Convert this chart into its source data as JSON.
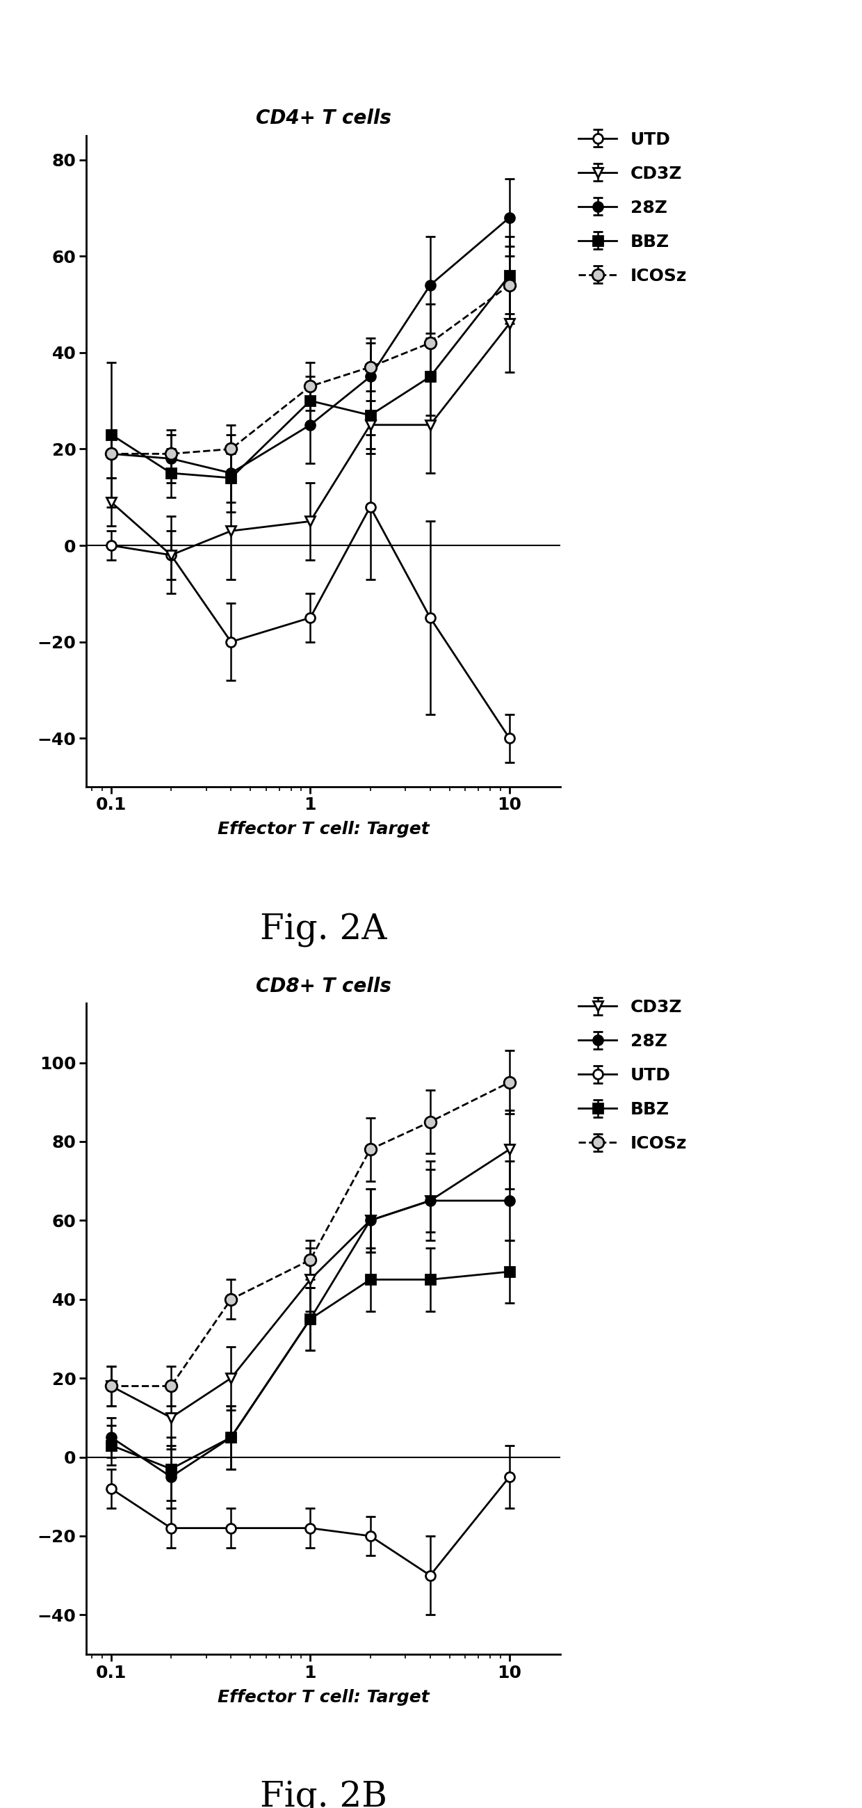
{
  "fig2a": {
    "title": "CD4+ T cells",
    "xlabel": "Effector T cell: Target",
    "ylim": [
      -50,
      85
    ],
    "yticks": [
      -40,
      -20,
      0,
      20,
      40,
      60,
      80
    ],
    "series": {
      "UTD": {
        "x": [
          0.1,
          0.2,
          0.4,
          1.0,
          2.0,
          4.0,
          10.0
        ],
        "y": [
          0,
          -2,
          -20,
          -15,
          8,
          -15,
          -40
        ],
        "yerr": [
          3,
          5,
          8,
          5,
          15,
          20,
          5
        ],
        "marker": "o",
        "mfc": "white",
        "linestyle": "-"
      },
      "CD3Z": {
        "x": [
          0.1,
          0.2,
          0.4,
          1.0,
          2.0,
          4.0,
          10.0
        ],
        "y": [
          9,
          -2,
          3,
          5,
          25,
          25,
          46
        ],
        "yerr": [
          5,
          8,
          10,
          8,
          5,
          10,
          10
        ],
        "marker": "v",
        "mfc": "white",
        "linestyle": "-"
      },
      "28Z": {
        "x": [
          0.1,
          0.2,
          0.4,
          1.0,
          2.0,
          4.0,
          10.0
        ],
        "y": [
          19,
          18,
          15,
          25,
          35,
          54,
          68
        ],
        "yerr": [
          5,
          5,
          8,
          8,
          8,
          10,
          8
        ],
        "marker": "o",
        "mfc": "black",
        "linestyle": "-"
      },
      "BBZ": {
        "x": [
          0.1,
          0.2,
          0.4,
          1.0,
          2.0,
          4.0,
          10.0
        ],
        "y": [
          23,
          15,
          14,
          30,
          27,
          35,
          56
        ],
        "yerr": [
          15,
          5,
          5,
          5,
          8,
          8,
          8
        ],
        "marker": "s",
        "mfc": "black",
        "linestyle": "-"
      },
      "ICOSz": {
        "x": [
          0.1,
          0.2,
          0.4,
          1.0,
          2.0,
          4.0,
          10.0
        ],
        "y": [
          19,
          19,
          20,
          33,
          37,
          42,
          54
        ],
        "yerr": [
          5,
          5,
          5,
          5,
          5,
          8,
          8
        ],
        "marker": "o",
        "mfc": "gray",
        "linestyle": "--"
      }
    },
    "legend_order": [
      "UTD",
      "CD3Z",
      "28Z",
      "BBZ",
      "ICOSz"
    ],
    "fig_label": "Fig. 2A"
  },
  "fig2b": {
    "title": "CD8+ T cells",
    "xlabel": "Effector T cell: Target",
    "ylim": [
      -50,
      115
    ],
    "yticks": [
      -40,
      -20,
      0,
      20,
      40,
      60,
      80,
      100
    ],
    "series": {
      "CD3Z": {
        "x": [
          0.1,
          0.2,
          0.4,
          1.0,
          2.0,
          4.0,
          10.0
        ],
        "y": [
          18,
          10,
          20,
          45,
          60,
          65,
          78
        ],
        "yerr": [
          5,
          8,
          8,
          8,
          8,
          10,
          10
        ],
        "marker": "v",
        "mfc": "white",
        "linestyle": "-"
      },
      "28Z": {
        "x": [
          0.1,
          0.2,
          0.4,
          1.0,
          2.0,
          4.0,
          10.0
        ],
        "y": [
          5,
          -5,
          5,
          35,
          60,
          65,
          65
        ],
        "yerr": [
          5,
          8,
          8,
          8,
          8,
          8,
          10
        ],
        "marker": "o",
        "mfc": "black",
        "linestyle": "-"
      },
      "UTD": {
        "x": [
          0.1,
          0.2,
          0.4,
          1.0,
          2.0,
          4.0,
          10.0
        ],
        "y": [
          -8,
          -18,
          -18,
          -18,
          -20,
          -30,
          -5
        ],
        "yerr": [
          5,
          5,
          5,
          5,
          5,
          10,
          8
        ],
        "marker": "o",
        "mfc": "white",
        "linestyle": "-"
      },
      "BBZ": {
        "x": [
          0.1,
          0.2,
          0.4,
          1.0,
          2.0,
          4.0,
          10.0
        ],
        "y": [
          3,
          -3,
          5,
          35,
          45,
          45,
          47
        ],
        "yerr": [
          5,
          8,
          8,
          8,
          8,
          8,
          8
        ],
        "marker": "s",
        "mfc": "black",
        "linestyle": "-"
      },
      "ICOSz": {
        "x": [
          0.1,
          0.2,
          0.4,
          1.0,
          2.0,
          4.0,
          10.0
        ],
        "y": [
          18,
          18,
          40,
          50,
          78,
          85,
          95
        ],
        "yerr": [
          5,
          5,
          5,
          5,
          8,
          8,
          8
        ],
        "marker": "o",
        "mfc": "gray",
        "linestyle": "--"
      }
    },
    "legend_order": [
      "CD3Z",
      "28Z",
      "UTD",
      "BBZ",
      "ICOSz"
    ],
    "fig_label": "Fig. 2B"
  },
  "xlim_log": [
    0.075,
    18
  ],
  "xticks": [
    0.1,
    1.0,
    10.0
  ],
  "xticklabels": [
    "0.1",
    "1",
    "10"
  ],
  "background_color": "#ffffff",
  "line_color": "#000000",
  "markersize": 10,
  "linewidth": 2.0,
  "capsize": 5,
  "elinewidth": 1.8,
  "capthick": 1.8,
  "spine_linewidth": 2.0,
  "tick_labelsize": 18,
  "axis_labelsize": 18,
  "title_fontsize": 20,
  "legend_fontsize": 18,
  "figlabel_fontsize": 36
}
